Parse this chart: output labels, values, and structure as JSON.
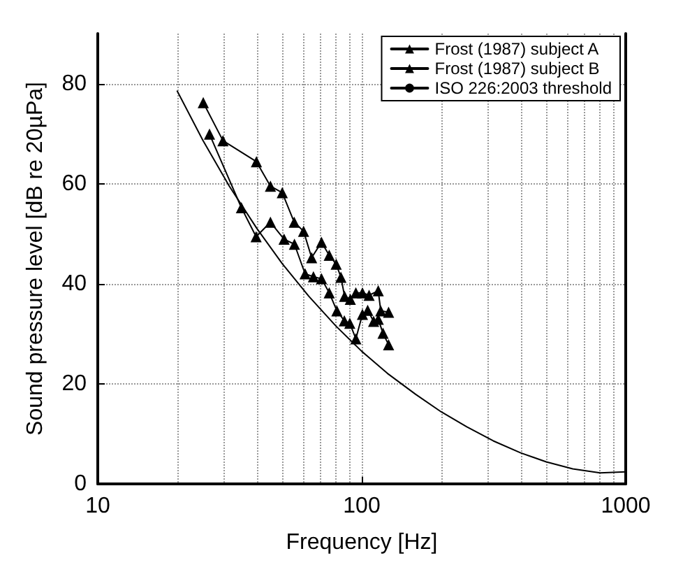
{
  "chart_data": {
    "type": "line",
    "xlabel": "Frequency [Hz]",
    "ylabel": "Sound pressure level [dB re 20µPa]",
    "log": "x",
    "xlim": [
      10,
      1000
    ],
    "xticks": [
      10,
      100,
      1000
    ],
    "ylim": [
      0,
      90
    ],
    "yticks": [
      0,
      20,
      40,
      60,
      80
    ],
    "grid": true,
    "legend": "top right",
    "line_style": "solid",
    "series": [
      {
        "name": "Frost (1987) subject A",
        "color": "#000000",
        "marker": "triangle",
        "x": [
          26.5,
          35.0,
          39.8,
          45.1,
          50.8,
          55.6,
          61.0,
          65.6,
          70.4,
          75.3,
          80.5,
          85.9,
          90.1,
          95.0,
          100.6,
          105.3,
          110.9,
          115.5,
          120.4,
          126.4
        ],
        "values": [
          69.9,
          55.2,
          49.4,
          52.3,
          48.9,
          47.9,
          42.0,
          41.4,
          41.0,
          38.2,
          34.6,
          32.6,
          32.1,
          29.0,
          33.9,
          34.7,
          32.5,
          32.9,
          30.1,
          27.8
        ]
      },
      {
        "name": "Frost (1987) subject B",
        "color": "#000000",
        "marker": "triangle",
        "x": [
          25.1,
          29.8,
          39.9,
          45.1,
          50.0,
          55.5,
          60.2,
          64.6,
          70.4,
          75.3,
          80.0,
          83.4,
          86.1,
          90.5,
          95.0,
          100.6,
          106.6,
          115.5,
          118.0,
          126.4
        ],
        "values": [
          76.2,
          68.6,
          64.4,
          59.5,
          58.2,
          52.3,
          50.5,
          45.2,
          48.3,
          45.7,
          43.9,
          41.3,
          37.5,
          36.9,
          38.2,
          38.2,
          37.7,
          38.6,
          34.6,
          34.3
        ]
      },
      {
        "name": "ISO 226:2003 threshold",
        "color": "#000000",
        "marker": "none",
        "x": [
          20,
          25,
          31.5,
          40,
          50,
          63,
          80,
          100,
          125,
          160,
          200,
          250,
          315,
          400,
          500,
          630,
          800,
          1000
        ],
        "values": [
          78.5,
          68.7,
          59.5,
          51.1,
          44.0,
          37.5,
          31.5,
          26.5,
          22.1,
          17.9,
          14.4,
          11.4,
          8.6,
          6.2,
          4.4,
          3.0,
          2.2,
          2.4
        ]
      }
    ]
  }
}
